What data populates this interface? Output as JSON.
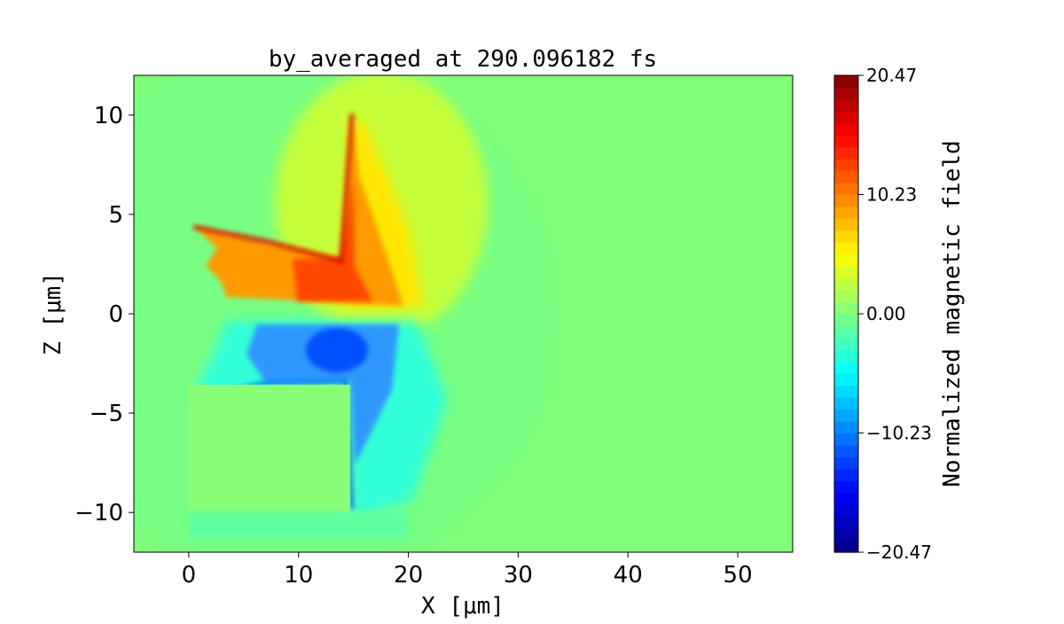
{
  "chart_data": {
    "type": "heatmap",
    "title": "by_averaged at 290.096182 fs",
    "xlabel": "X [μm]",
    "ylabel": "Z [μm]",
    "xlim": [
      -5,
      55
    ],
    "ylim": [
      -12,
      12
    ],
    "xticks": [
      0,
      10,
      20,
      30,
      40,
      50
    ],
    "yticks": [
      -10,
      -5,
      0,
      5,
      10
    ],
    "colormap": "jet",
    "colorbar": {
      "label": "Normalized magnetic field",
      "range": [
        -20.47,
        20.47
      ],
      "ticks": [
        "20.47",
        "10.23",
        "0.00",
        "−10.23",
        "−20.47"
      ],
      "tick_values": [
        20.47,
        10.23,
        0.0,
        -10.23,
        -20.47
      ]
    },
    "background_value": 0.0,
    "features": [
      {
        "description_value": "positive field lobe",
        "x_range": [
          0,
          20
        ],
        "z_range": [
          0,
          10
        ],
        "peak": 20.47
      },
      {
        "description_value": "negative field lobe",
        "x_range": [
          2,
          20
        ],
        "z_range": [
          -10,
          0
        ],
        "peak": -15
      }
    ]
  }
}
